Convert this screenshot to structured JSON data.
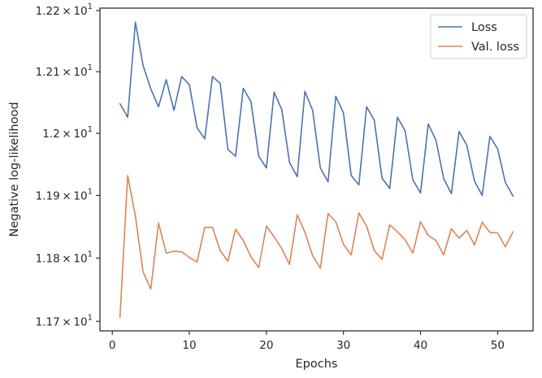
{
  "chart_data": {
    "type": "line",
    "xlabel": "Epochs",
    "ylabel": "Negative log-likelihood",
    "xlim": [
      -1.6,
      54.6
    ],
    "ylim": [
      11.685,
      12.204
    ],
    "yscale": "log",
    "xticks": [
      0,
      10,
      20,
      30,
      40,
      50
    ],
    "xtick_labels": [
      "0",
      "10",
      "20",
      "30",
      "40",
      "50"
    ],
    "yticks": [
      11.7,
      11.8,
      11.9,
      12.0,
      12.1,
      12.2
    ],
    "ytick_labels": [
      {
        "mantissa": "1.17",
        "base": "10",
        "exp": "1"
      },
      {
        "mantissa": "1.18",
        "base": "10",
        "exp": "1"
      },
      {
        "mantissa": "1.19",
        "base": "10",
        "exp": "1"
      },
      {
        "mantissa": "1.2",
        "base": "10",
        "exp": "1"
      },
      {
        "mantissa": "1.21",
        "base": "10",
        "exp": "1"
      },
      {
        "mantissa": "1.22",
        "base": "10",
        "exp": "1"
      }
    ],
    "grid": false,
    "legend_position": "top-right",
    "x": [
      1,
      2,
      3,
      4,
      5,
      6,
      7,
      8,
      9,
      10,
      11,
      12,
      13,
      14,
      15,
      16,
      17,
      18,
      19,
      20,
      21,
      22,
      23,
      24,
      25,
      26,
      27,
      28,
      29,
      30,
      31,
      32,
      33,
      34,
      35,
      36,
      37,
      38,
      39,
      40,
      41,
      42,
      43,
      44,
      45,
      46,
      47,
      48,
      49,
      50,
      51,
      52
    ],
    "series": [
      {
        "name": "Loss",
        "color": "#4c72b0",
        "values": [
          12.048,
          12.026,
          12.181,
          12.11,
          12.072,
          12.043,
          12.087,
          12.037,
          12.092,
          12.079,
          12.009,
          11.991,
          12.092,
          12.081,
          11.974,
          11.963,
          12.073,
          12.051,
          11.963,
          11.944,
          12.067,
          12.038,
          11.953,
          11.93,
          12.068,
          12.037,
          11.944,
          11.922,
          12.06,
          12.033,
          11.932,
          11.917,
          12.043,
          12.021,
          11.928,
          11.911,
          12.026,
          12.004,
          11.925,
          11.904,
          12.015,
          11.989,
          11.927,
          11.903,
          12.003,
          11.981,
          11.923,
          11.9,
          11.995,
          11.975,
          11.921,
          11.899
        ]
      },
      {
        "name": "Val. loss",
        "color": "#dd8452",
        "values": [
          11.706,
          11.932,
          11.867,
          11.778,
          11.751,
          11.856,
          11.808,
          11.811,
          11.81,
          11.801,
          11.794,
          11.849,
          11.849,
          11.812,
          11.795,
          11.846,
          11.828,
          11.802,
          11.785,
          11.851,
          11.834,
          11.815,
          11.79,
          11.869,
          11.841,
          11.804,
          11.784,
          11.871,
          11.858,
          11.822,
          11.805,
          11.872,
          11.851,
          11.812,
          11.798,
          11.853,
          11.842,
          11.829,
          11.808,
          11.858,
          11.836,
          11.828,
          11.805,
          11.847,
          11.832,
          11.844,
          11.821,
          11.857,
          11.841,
          11.84,
          11.818,
          11.842
        ]
      }
    ]
  }
}
